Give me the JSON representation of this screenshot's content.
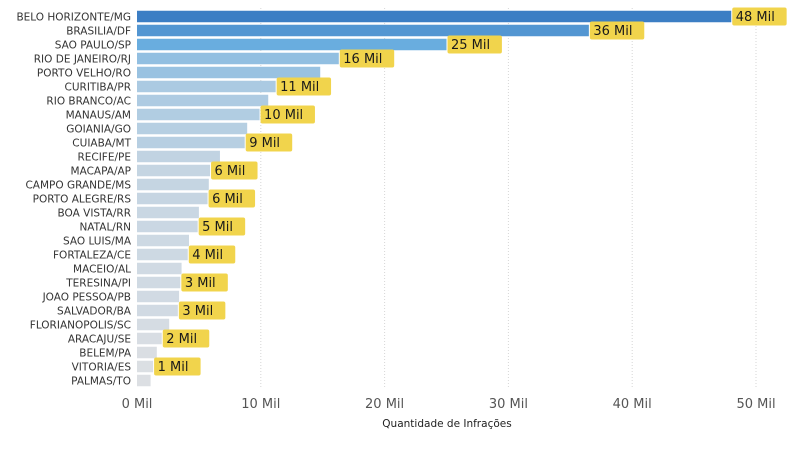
{
  "chart_data": {
    "type": "bar",
    "orientation": "horizontal",
    "xlabel": "Quantidade de Infrações",
    "xlim": [
      0,
      50000
    ],
    "x_ticks": [
      {
        "value": 0,
        "label": "0 Mil"
      },
      {
        "value": 10000,
        "label": "10 Mil"
      },
      {
        "value": 20000,
        "label": "20 Mil"
      },
      {
        "value": 30000,
        "label": "30 Mil"
      },
      {
        "value": 40000,
        "label": "40 Mil"
      },
      {
        "value": 50000,
        "label": "50 Mil"
      }
    ],
    "grid": "vertical dotted",
    "bars": [
      {
        "category": "BELO HORIZONTE/MG",
        "value": 48000,
        "label": "48 Mil"
      },
      {
        "category": "BRASILIA/DF",
        "value": 36500,
        "label": "36 Mil"
      },
      {
        "category": "SAO PAULO/SP",
        "value": 25000,
        "label": "25 Mil"
      },
      {
        "category": "RIO DE JANEIRO/RJ",
        "value": 16300,
        "label": "16 Mil"
      },
      {
        "category": "PORTO VELHO/RO",
        "value": 14800,
        "label": null
      },
      {
        "category": "CURITIBA/PR",
        "value": 11200,
        "label": "11 Mil"
      },
      {
        "category": "RIO BRANCO/AC",
        "value": 10600,
        "label": null
      },
      {
        "category": "MANAUS/AM",
        "value": 9900,
        "label": "10 Mil"
      },
      {
        "category": "GOIANIA/GO",
        "value": 8900,
        "label": null
      },
      {
        "category": "CUIABA/MT",
        "value": 8700,
        "label": "9 Mil"
      },
      {
        "category": "RECIFE/PE",
        "value": 6700,
        "label": null
      },
      {
        "category": "MACAPA/AP",
        "value": 5900,
        "label": "6 Mil"
      },
      {
        "category": "CAMPO GRANDE/MS",
        "value": 5800,
        "label": null
      },
      {
        "category": "PORTO ALEGRE/RS",
        "value": 5700,
        "label": "6 Mil"
      },
      {
        "category": "BOA VISTA/RR",
        "value": 5000,
        "label": null
      },
      {
        "category": "NATAL/RN",
        "value": 4900,
        "label": "5 Mil"
      },
      {
        "category": "SAO LUIS/MA",
        "value": 4200,
        "label": null
      },
      {
        "category": "FORTALEZA/CE",
        "value": 4100,
        "label": "4 Mil"
      },
      {
        "category": "MACEIO/AL",
        "value": 3600,
        "label": null
      },
      {
        "category": "TERESINA/PI",
        "value": 3500,
        "label": "3 Mil"
      },
      {
        "category": "JOAO PESSOA/PB",
        "value": 3400,
        "label": null
      },
      {
        "category": "SALVADOR/BA",
        "value": 3300,
        "label": "3 Mil"
      },
      {
        "category": "FLORIANOPOLIS/SC",
        "value": 2600,
        "label": null
      },
      {
        "category": "ARACAJU/SE",
        "value": 2000,
        "label": "2 Mil"
      },
      {
        "category": "BELEM/PA",
        "value": 1600,
        "label": null
      },
      {
        "category": "VITORIA/ES",
        "value": 1300,
        "label": "1 Mil"
      },
      {
        "category": "PALMAS/TO",
        "value": 1100,
        "label": null
      }
    ],
    "colors": {
      "bar_max": "#3c7ec4",
      "bar_mid": "#6aaee0",
      "bar_min": "#dcdfe3",
      "data_label_bg": "#f1d44c",
      "grid": "#d6d6d6"
    }
  }
}
